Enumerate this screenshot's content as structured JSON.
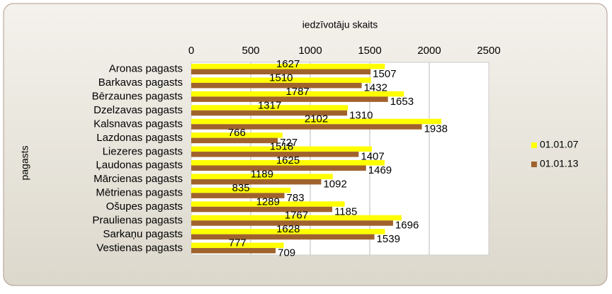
{
  "chart_data": {
    "type": "bar",
    "orientation": "horizontal",
    "xlabel": "iedzīvotāju skaits",
    "ylabel": "pagasts",
    "categories": [
      "Aronas pagasts",
      "Barkavas pagasts",
      "Bērzaunes pagasts",
      "Dzelzavas pagasts",
      "Kalsnavas pagasts",
      "Lazdonas pagasts",
      "Liezeres pagasts",
      "Ļaudonas pagasts",
      "Mārcienas pagasts",
      "Mētrienas pagasts",
      "Ošupes pagasts",
      "Praulienas pagasts",
      "Sarkaņu pagasts",
      "Vestienas pagasts"
    ],
    "series": [
      {
        "name": "01.01.07",
        "color": "#ffff00",
        "values": [
          1627,
          1510,
          1787,
          1317,
          2102,
          766,
          1518,
          1625,
          1189,
          835,
          1289,
          1767,
          1628,
          777
        ]
      },
      {
        "name": "01.01.13",
        "color": "#a0622d",
        "values": [
          1507,
          1432,
          1653,
          1310,
          1938,
          727,
          1407,
          1469,
          1092,
          783,
          1185,
          1696,
          1539,
          709
        ]
      }
    ],
    "xlim": [
      0,
      2500
    ],
    "xticks": [
      0,
      500,
      1000,
      1500,
      2000,
      2500
    ],
    "grid": true,
    "legend": "right"
  }
}
